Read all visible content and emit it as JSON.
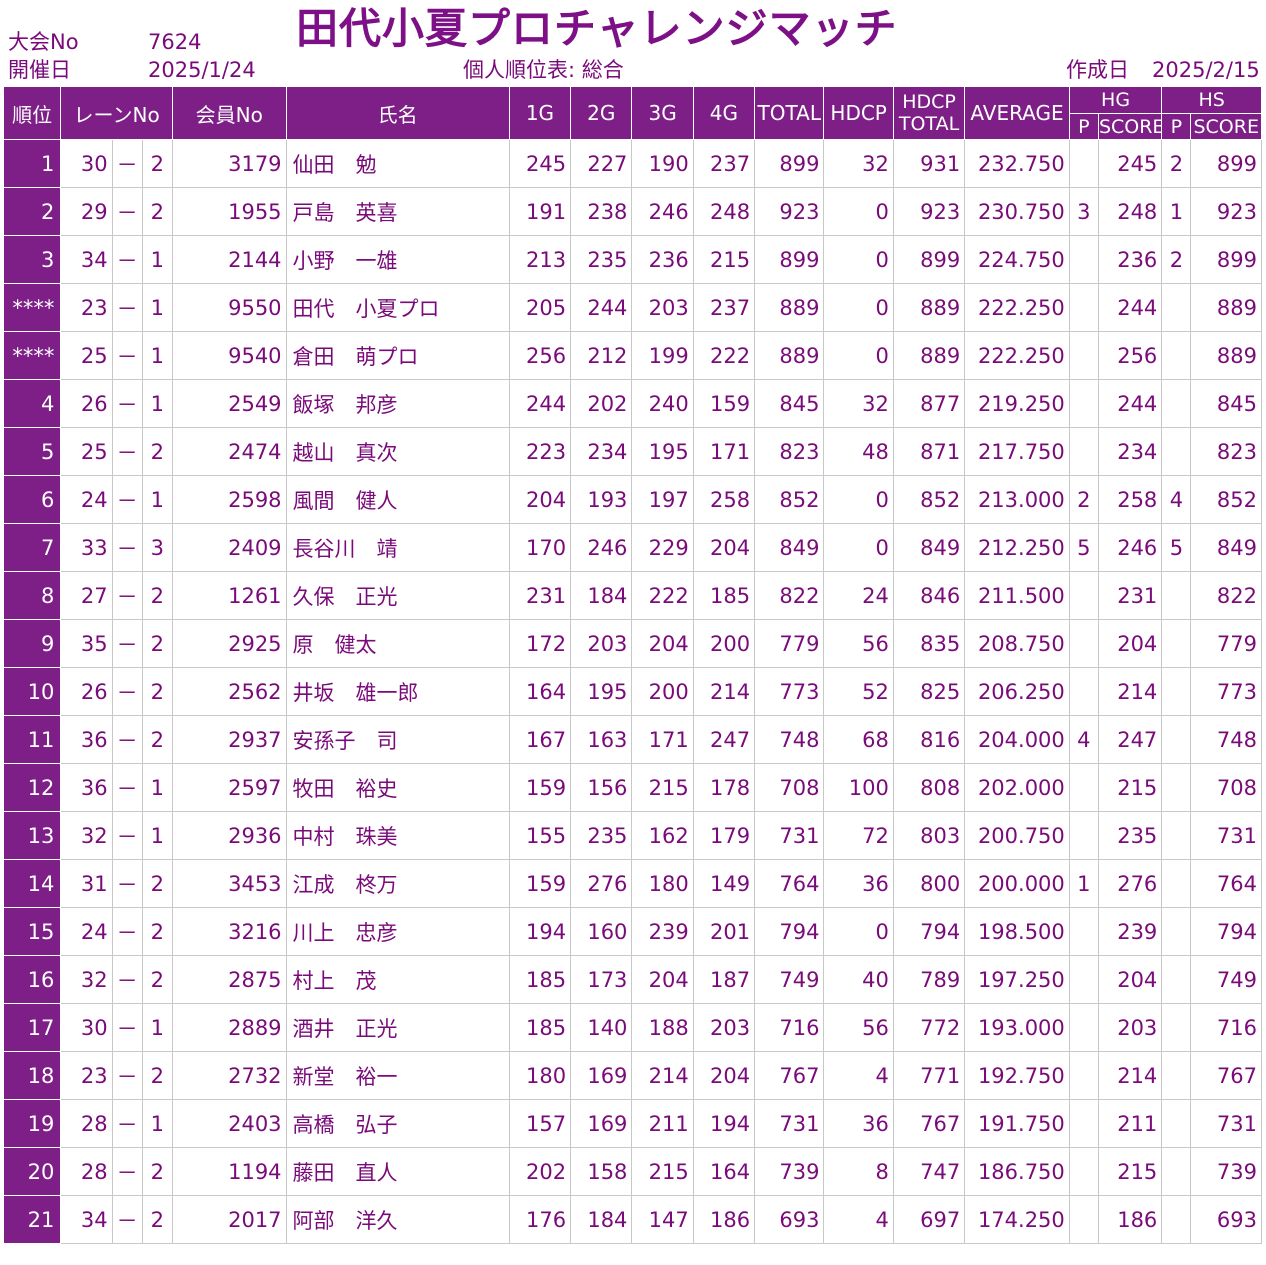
{
  "header": {
    "event_no_label": "大会No",
    "event_no": "7624",
    "date_label": "開催日",
    "date": "2025/1/24",
    "title": "田代小夏プロチャレンジマッチ",
    "report_label": "個人順位表: 総合",
    "created_label": "作成日",
    "created_date": "2025/2/15"
  },
  "columns": {
    "rank": "順位",
    "lane": "レーンNo",
    "member": "会員No",
    "name": "氏名",
    "g1": "1G",
    "g2": "2G",
    "g3": "3G",
    "g4": "4G",
    "total": "TOTAL",
    "hdcp": "HDCP",
    "hdcp_total_1": "HDCP",
    "hdcp_total_2": "TOTAL",
    "average": "AVERAGE",
    "hg": "HG",
    "hs": "HS",
    "p": "P",
    "score": "SCORE"
  },
  "rows": [
    {
      "rank": "1",
      "lane": "30",
      "dash": "－",
      "sub": "2",
      "member": "3179",
      "name": "仙田　勉",
      "g1": "245",
      "g2": "227",
      "g3": "190",
      "g4": "237",
      "total": "899",
      "hdcp": "32",
      "hdcp_total": "931",
      "avg": "232.750",
      "hg_p": "",
      "hg_score": "245",
      "hs_p": "2",
      "hs_score": "899"
    },
    {
      "rank": "2",
      "lane": "29",
      "dash": "－",
      "sub": "2",
      "member": "1955",
      "name": "戸島　英喜",
      "g1": "191",
      "g2": "238",
      "g3": "246",
      "g4": "248",
      "total": "923",
      "hdcp": "0",
      "hdcp_total": "923",
      "avg": "230.750",
      "hg_p": "3",
      "hg_score": "248",
      "hs_p": "1",
      "hs_score": "923"
    },
    {
      "rank": "3",
      "lane": "34",
      "dash": "－",
      "sub": "1",
      "member": "2144",
      "name": "小野　一雄",
      "g1": "213",
      "g2": "235",
      "g3": "236",
      "g4": "215",
      "total": "899",
      "hdcp": "0",
      "hdcp_total": "899",
      "avg": "224.750",
      "hg_p": "",
      "hg_score": "236",
      "hs_p": "2",
      "hs_score": "899"
    },
    {
      "rank": "****",
      "lane": "23",
      "dash": "－",
      "sub": "1",
      "member": "9550",
      "name": "田代　小夏プロ",
      "g1": "205",
      "g2": "244",
      "g3": "203",
      "g4": "237",
      "total": "889",
      "hdcp": "0",
      "hdcp_total": "889",
      "avg": "222.250",
      "hg_p": "",
      "hg_score": "244",
      "hs_p": "",
      "hs_score": "889"
    },
    {
      "rank": "****",
      "lane": "25",
      "dash": "－",
      "sub": "1",
      "member": "9540",
      "name": "倉田　萌プロ",
      "g1": "256",
      "g2": "212",
      "g3": "199",
      "g4": "222",
      "total": "889",
      "hdcp": "0",
      "hdcp_total": "889",
      "avg": "222.250",
      "hg_p": "",
      "hg_score": "256",
      "hs_p": "",
      "hs_score": "889"
    },
    {
      "rank": "4",
      "lane": "26",
      "dash": "－",
      "sub": "1",
      "member": "2549",
      "name": "飯塚　邦彦",
      "g1": "244",
      "g2": "202",
      "g3": "240",
      "g4": "159",
      "total": "845",
      "hdcp": "32",
      "hdcp_total": "877",
      "avg": "219.250",
      "hg_p": "",
      "hg_score": "244",
      "hs_p": "",
      "hs_score": "845"
    },
    {
      "rank": "5",
      "lane": "25",
      "dash": "－",
      "sub": "2",
      "member": "2474",
      "name": "越山　真次",
      "g1": "223",
      "g2": "234",
      "g3": "195",
      "g4": "171",
      "total": "823",
      "hdcp": "48",
      "hdcp_total": "871",
      "avg": "217.750",
      "hg_p": "",
      "hg_score": "234",
      "hs_p": "",
      "hs_score": "823"
    },
    {
      "rank": "6",
      "lane": "24",
      "dash": "－",
      "sub": "1",
      "member": "2598",
      "name": "風間　健人",
      "g1": "204",
      "g2": "193",
      "g3": "197",
      "g4": "258",
      "total": "852",
      "hdcp": "0",
      "hdcp_total": "852",
      "avg": "213.000",
      "hg_p": "2",
      "hg_score": "258",
      "hs_p": "4",
      "hs_score": "852"
    },
    {
      "rank": "7",
      "lane": "33",
      "dash": "－",
      "sub": "3",
      "member": "2409",
      "name": "長谷川　靖",
      "g1": "170",
      "g2": "246",
      "g3": "229",
      "g4": "204",
      "total": "849",
      "hdcp": "0",
      "hdcp_total": "849",
      "avg": "212.250",
      "hg_p": "5",
      "hg_score": "246",
      "hs_p": "5",
      "hs_score": "849"
    },
    {
      "rank": "8",
      "lane": "27",
      "dash": "－",
      "sub": "2",
      "member": "1261",
      "name": "久保　正光",
      "g1": "231",
      "g2": "184",
      "g3": "222",
      "g4": "185",
      "total": "822",
      "hdcp": "24",
      "hdcp_total": "846",
      "avg": "211.500",
      "hg_p": "",
      "hg_score": "231",
      "hs_p": "",
      "hs_score": "822"
    },
    {
      "rank": "9",
      "lane": "35",
      "dash": "－",
      "sub": "2",
      "member": "2925",
      "name": "原　健太",
      "g1": "172",
      "g2": "203",
      "g3": "204",
      "g4": "200",
      "total": "779",
      "hdcp": "56",
      "hdcp_total": "835",
      "avg": "208.750",
      "hg_p": "",
      "hg_score": "204",
      "hs_p": "",
      "hs_score": "779"
    },
    {
      "rank": "10",
      "lane": "26",
      "dash": "－",
      "sub": "2",
      "member": "2562",
      "name": "井坂　雄一郎",
      "g1": "164",
      "g2": "195",
      "g3": "200",
      "g4": "214",
      "total": "773",
      "hdcp": "52",
      "hdcp_total": "825",
      "avg": "206.250",
      "hg_p": "",
      "hg_score": "214",
      "hs_p": "",
      "hs_score": "773"
    },
    {
      "rank": "11",
      "lane": "36",
      "dash": "－",
      "sub": "2",
      "member": "2937",
      "name": "安孫子　司",
      "g1": "167",
      "g2": "163",
      "g3": "171",
      "g4": "247",
      "total": "748",
      "hdcp": "68",
      "hdcp_total": "816",
      "avg": "204.000",
      "hg_p": "4",
      "hg_score": "247",
      "hs_p": "",
      "hs_score": "748"
    },
    {
      "rank": "12",
      "lane": "36",
      "dash": "－",
      "sub": "1",
      "member": "2597",
      "name": "牧田　裕史",
      "g1": "159",
      "g2": "156",
      "g3": "215",
      "g4": "178",
      "total": "708",
      "hdcp": "100",
      "hdcp_total": "808",
      "avg": "202.000",
      "hg_p": "",
      "hg_score": "215",
      "hs_p": "",
      "hs_score": "708"
    },
    {
      "rank": "13",
      "lane": "32",
      "dash": "－",
      "sub": "1",
      "member": "2936",
      "name": "中村　珠美",
      "g1": "155",
      "g2": "235",
      "g3": "162",
      "g4": "179",
      "total": "731",
      "hdcp": "72",
      "hdcp_total": "803",
      "avg": "200.750",
      "hg_p": "",
      "hg_score": "235",
      "hs_p": "",
      "hs_score": "731"
    },
    {
      "rank": "14",
      "lane": "31",
      "dash": "－",
      "sub": "2",
      "member": "3453",
      "name": "江成　柊万",
      "g1": "159",
      "g2": "276",
      "g3": "180",
      "g4": "149",
      "total": "764",
      "hdcp": "36",
      "hdcp_total": "800",
      "avg": "200.000",
      "hg_p": "1",
      "hg_score": "276",
      "hs_p": "",
      "hs_score": "764"
    },
    {
      "rank": "15",
      "lane": "24",
      "dash": "－",
      "sub": "2",
      "member": "3216",
      "name": "川上　忠彦",
      "g1": "194",
      "g2": "160",
      "g3": "239",
      "g4": "201",
      "total": "794",
      "hdcp": "0",
      "hdcp_total": "794",
      "avg": "198.500",
      "hg_p": "",
      "hg_score": "239",
      "hs_p": "",
      "hs_score": "794"
    },
    {
      "rank": "16",
      "lane": "32",
      "dash": "－",
      "sub": "2",
      "member": "2875",
      "name": "村上　茂",
      "g1": "185",
      "g2": "173",
      "g3": "204",
      "g4": "187",
      "total": "749",
      "hdcp": "40",
      "hdcp_total": "789",
      "avg": "197.250",
      "hg_p": "",
      "hg_score": "204",
      "hs_p": "",
      "hs_score": "749"
    },
    {
      "rank": "17",
      "lane": "30",
      "dash": "－",
      "sub": "1",
      "member": "2889",
      "name": "酒井　正光",
      "g1": "185",
      "g2": "140",
      "g3": "188",
      "g4": "203",
      "total": "716",
      "hdcp": "56",
      "hdcp_total": "772",
      "avg": "193.000",
      "hg_p": "",
      "hg_score": "203",
      "hs_p": "",
      "hs_score": "716"
    },
    {
      "rank": "18",
      "lane": "23",
      "dash": "－",
      "sub": "2",
      "member": "2732",
      "name": "新堂　裕一",
      "g1": "180",
      "g2": "169",
      "g3": "214",
      "g4": "204",
      "total": "767",
      "hdcp": "4",
      "hdcp_total": "771",
      "avg": "192.750",
      "hg_p": "",
      "hg_score": "214",
      "hs_p": "",
      "hs_score": "767"
    },
    {
      "rank": "19",
      "lane": "28",
      "dash": "－",
      "sub": "1",
      "member": "2403",
      "name": "高橋　弘子",
      "g1": "157",
      "g2": "169",
      "g3": "211",
      "g4": "194",
      "total": "731",
      "hdcp": "36",
      "hdcp_total": "767",
      "avg": "191.750",
      "hg_p": "",
      "hg_score": "211",
      "hs_p": "",
      "hs_score": "731"
    },
    {
      "rank": "20",
      "lane": "28",
      "dash": "－",
      "sub": "2",
      "member": "1194",
      "name": "藤田　直人",
      "g1": "202",
      "g2": "158",
      "g3": "215",
      "g4": "164",
      "total": "739",
      "hdcp": "8",
      "hdcp_total": "747",
      "avg": "186.750",
      "hg_p": "",
      "hg_score": "215",
      "hs_p": "",
      "hs_score": "739"
    },
    {
      "rank": "21",
      "lane": "34",
      "dash": "－",
      "sub": "2",
      "member": "2017",
      "name": "阿部　洋久",
      "g1": "176",
      "g2": "184",
      "g3": "147",
      "g4": "186",
      "total": "693",
      "hdcp": "4",
      "hdcp_total": "697",
      "avg": "174.250",
      "hg_p": "",
      "hg_score": "186",
      "hs_p": "",
      "hs_score": "693"
    }
  ],
  "colors": {
    "accent": "#7e1f87",
    "text": "#7a0a7a",
    "grid": "#c8c8c8"
  }
}
